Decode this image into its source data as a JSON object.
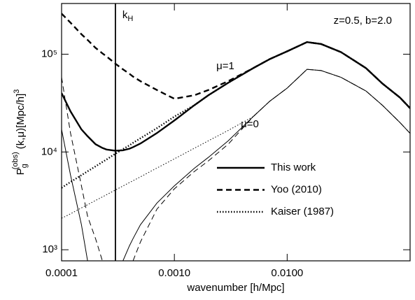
{
  "chart_data": {
    "type": "line",
    "xscale": "log",
    "yscale": "log",
    "xlabel": "wavenumber [h/Mpc]",
    "ylabel": {
      "main": "P",
      "sub": "g",
      "sup": "(obs)",
      "rest": "(k,μ)[Mpc/h]",
      "power": "3"
    },
    "xlim": [
      0.0001,
      0.123
    ],
    "ylim": [
      770,
      330000
    ],
    "xticks": [
      0.0001,
      {
        "value": 0.001,
        "label": "0.0010"
      },
      {
        "value": 0.01,
        "label": "0.0100"
      }
    ],
    "yticks": [
      {
        "value": 1000,
        "label": "10³"
      },
      {
        "value": 10000,
        "label": "10⁴"
      },
      {
        "value": 100000,
        "label": "10⁵"
      }
    ],
    "annotations": [
      "z=0.5, b=2.0",
      "μ=1",
      "μ=0"
    ],
    "vline": {
      "x": 0.0003,
      "label": "k",
      "label_sub": "H"
    },
    "legend": "lower right",
    "x": [
      0.0001,
      0.00012,
      0.00015,
      0.00017,
      0.0002,
      0.00023,
      0.00025,
      0.0003,
      0.00035,
      0.0004,
      0.00043,
      0.0005,
      0.0007,
      0.001,
      0.0015,
      0.002,
      0.003,
      0.005,
      0.007,
      0.01,
      0.015,
      0.02,
      0.03,
      0.05,
      0.07,
      0.1,
      0.123
    ],
    "series": [
      {
        "name": "This work",
        "style": "solid",
        "color": "#000000",
        "values": [
          40000,
          26000,
          17000,
          14500,
          12000,
          11000,
          10600,
          10300,
          10400,
          10800,
          11200,
          12200,
          15600,
          21000,
          30000,
          38000,
          51000,
          72000,
          89000,
          107000,
          133000,
          127000,
          105000,
          72000,
          50000,
          36000,
          28000
        ],
        "values_mu0": [
          17000,
          5800,
          1800,
          770,
          null,
          null,
          null,
          null,
          770,
          1100,
          1300,
          1800,
          3000,
          4500,
          6800,
          8800,
          13000,
          23000,
          33000,
          45000,
          70000,
          68000,
          58000,
          42000,
          30000,
          20000,
          15500
        ]
      },
      {
        "name": "Yoo (2010)",
        "style": "dashed",
        "color": "#000000",
        "values": [
          260000,
          210000,
          160000,
          140000,
          116000,
          102000,
          95000,
          80000,
          70000,
          63000,
          59000,
          53000,
          43000,
          35000,
          38000,
          43000,
          53000,
          72000,
          89000,
          107000,
          133000,
          127000,
          105000,
          72000,
          50000,
          36000,
          28000
        ],
        "values_mu0": [
          58000,
          15600,
          4500,
          2200,
          1300,
          770,
          null,
          null,
          null,
          null,
          770,
          1200,
          2600,
          4200,
          6300,
          8100,
          12000,
          23000,
          33000,
          45000,
          70000,
          68000,
          58000,
          42000,
          30000,
          20000,
          15500
        ]
      },
      {
        "name": "Kaiser (1987)",
        "style": "dotted",
        "color": "#000000",
        "values": [
          4300,
          4930,
          5790,
          6340,
          7120,
          7890,
          8360,
          9600,
          10700,
          11700,
          12400,
          13800,
          17500,
          23000,
          30000,
          38000,
          51000,
          72000,
          89000,
          107000,
          133000,
          127000,
          105000,
          72000,
          50000,
          36000,
          28000
        ],
        "values_mu0": [
          2100,
          2330,
          2680,
          2890,
          3190,
          3470,
          3650,
          4080,
          4490,
          4870,
          5080,
          5570,
          6850,
          8500,
          10900,
          13000,
          16600,
          23000,
          33000,
          45000,
          70000,
          68000,
          58000,
          42000,
          30000,
          20000,
          15500
        ]
      }
    ]
  }
}
